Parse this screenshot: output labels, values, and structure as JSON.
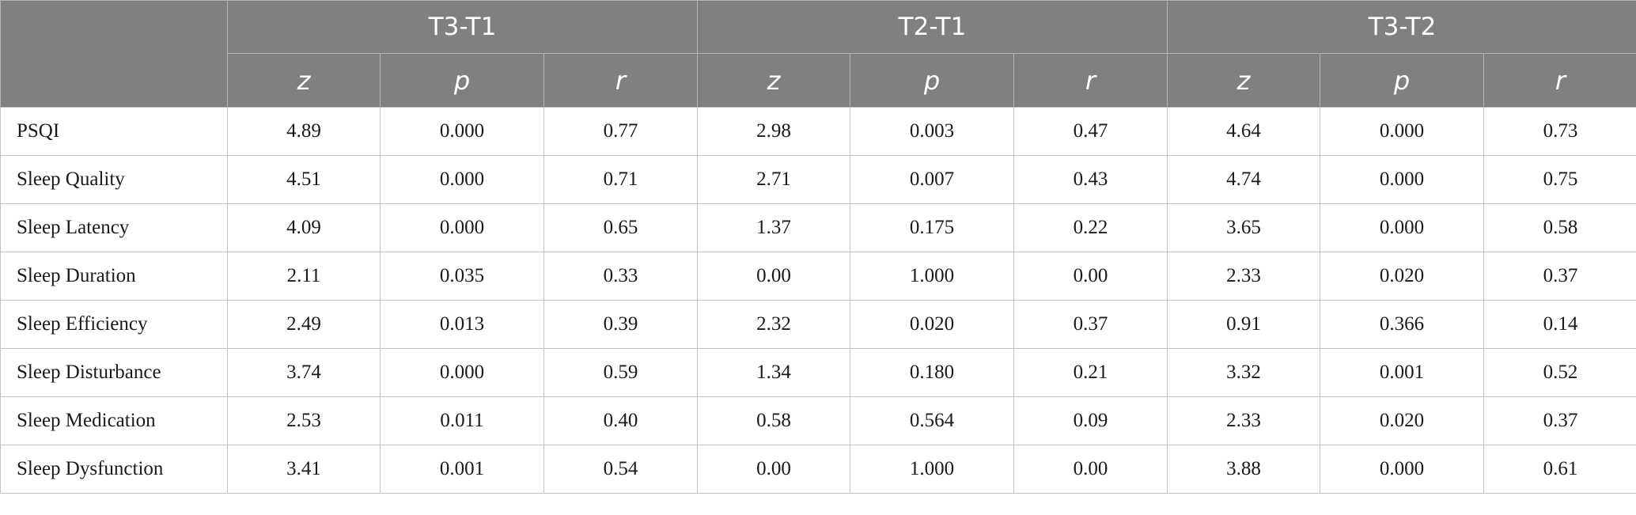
{
  "groups": [
    "T3-T1",
    "T2-T1",
    "T3-T2"
  ],
  "sub_headers": [
    "z",
    "p",
    "r"
  ],
  "rows": [
    {
      "label": "PSQI",
      "values": [
        "4.89",
        "0.000",
        "0.77",
        "2.98",
        "0.003",
        "0.47",
        "4.64",
        "0.000",
        "0.73"
      ]
    },
    {
      "label": "Sleep Quality",
      "values": [
        "4.51",
        "0.000",
        "0.71",
        "2.71",
        "0.007",
        "0.43",
        "4.74",
        "0.000",
        "0.75"
      ]
    },
    {
      "label": "Sleep Latency",
      "values": [
        "4.09",
        "0.000",
        "0.65",
        "1.37",
        "0.175",
        "0.22",
        "3.65",
        "0.000",
        "0.58"
      ]
    },
    {
      "label": "Sleep Duration",
      "values": [
        "2.11",
        "0.035",
        "0.33",
        "0.00",
        "1.000",
        "0.00",
        "2.33",
        "0.020",
        "0.37"
      ]
    },
    {
      "label": "Sleep Efficiency",
      "values": [
        "2.49",
        "0.013",
        "0.39",
        "2.32",
        "0.020",
        "0.37",
        "0.91",
        "0.366",
        "0.14"
      ]
    },
    {
      "label": "Sleep Disturbance",
      "values": [
        "3.74",
        "0.000",
        "0.59",
        "1.34",
        "0.180",
        "0.21",
        "3.32",
        "0.001",
        "0.52"
      ]
    },
    {
      "label": "Sleep Medication",
      "values": [
        "2.53",
        "0.011",
        "0.40",
        "0.58",
        "0.564",
        "0.09",
        "2.33",
        "0.020",
        "0.37"
      ]
    },
    {
      "label": "Sleep Dysfunction",
      "values": [
        "3.41",
        "0.001",
        "0.54",
        "0.00",
        "1.000",
        "0.00",
        "3.88",
        "0.000",
        "0.61"
      ]
    }
  ]
}
